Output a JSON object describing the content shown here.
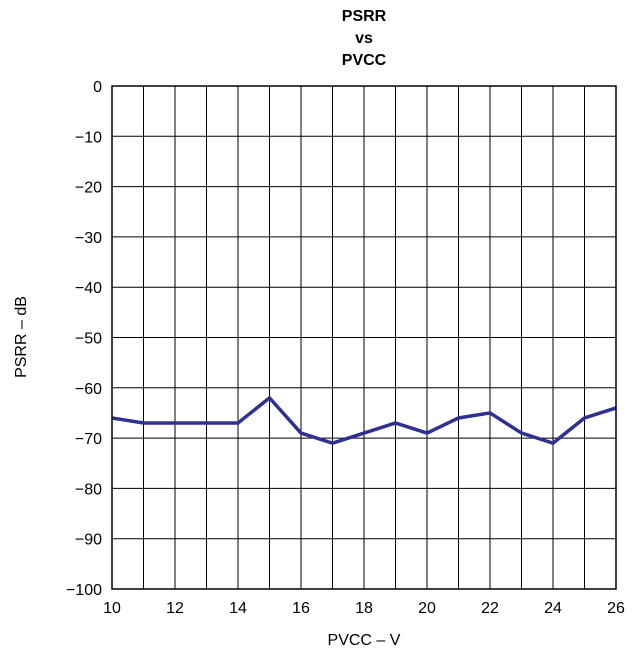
{
  "chart_data": {
    "type": "line",
    "title_lines": [
      "PSRR",
      "vs",
      "PVCC"
    ],
    "xlabel": "PVCC – V",
    "ylabel": "PSRR – dB",
    "xlim": [
      10,
      26
    ],
    "ylim": [
      -100,
      0
    ],
    "xticks": [
      10,
      12,
      14,
      16,
      18,
      20,
      22,
      24,
      26
    ],
    "yticks": [
      0,
      -10,
      -20,
      -30,
      -40,
      -50,
      -60,
      -70,
      -80,
      -90,
      -100
    ],
    "xtick_labels": [
      "10",
      "12",
      "14",
      "16",
      "18",
      "20",
      "22",
      "24",
      "26"
    ],
    "ytick_labels": [
      "0",
      "−10",
      "−20",
      "−30",
      "−40",
      "−50",
      "−60",
      "−70",
      "−80",
      "−90",
      "−100"
    ],
    "grid": true,
    "series": [
      {
        "color": "#2e3192",
        "x": [
          10,
          11,
          12,
          13,
          14,
          15,
          16,
          17,
          18,
          19,
          20,
          21,
          22,
          23,
          24,
          25,
          26
        ],
        "y": [
          -66,
          -67,
          -67,
          -67,
          -67,
          -62,
          -69,
          -71,
          -69,
          -67,
          -69,
          -66,
          -65,
          -69,
          -71,
          -66,
          -64
        ]
      }
    ]
  }
}
